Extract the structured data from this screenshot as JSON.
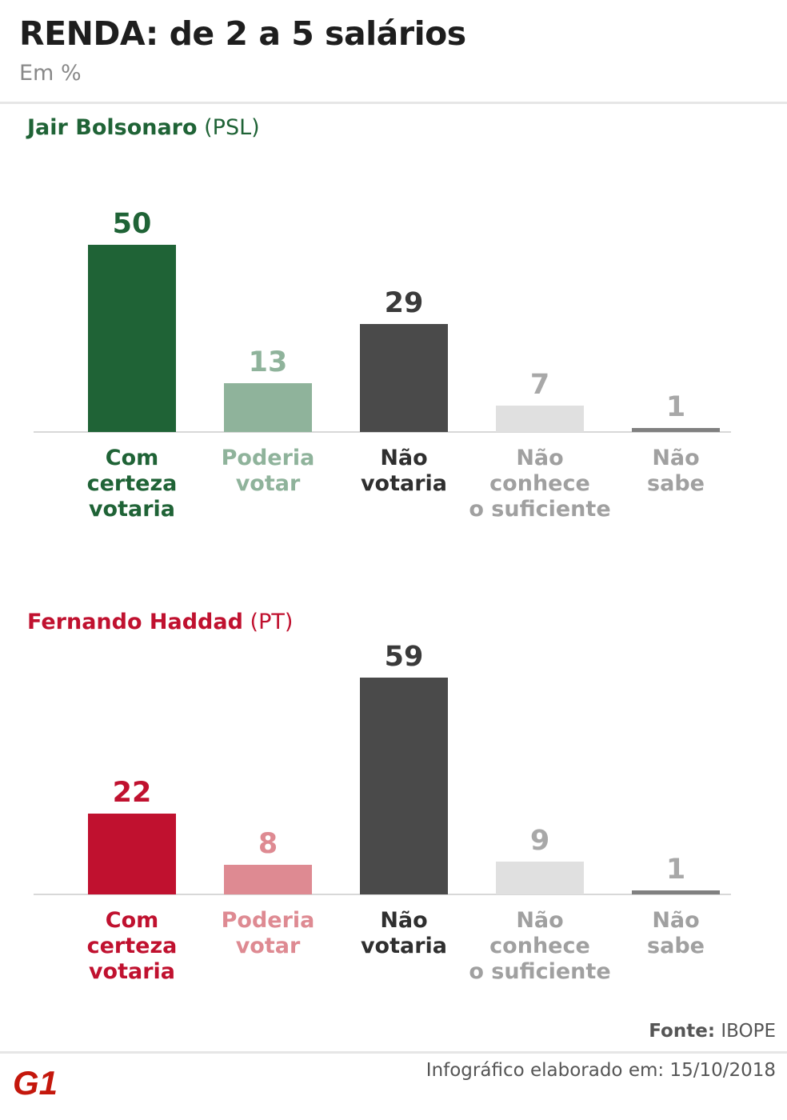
{
  "header": {
    "title": "RENDA: de 2 a 5 salários",
    "subtitle": "Em %"
  },
  "chart_data": [
    {
      "type": "bar",
      "candidate": "Jair Bolsonaro",
      "party": "(PSL)",
      "color": "#1f6336",
      "categories": [
        "Com certeza votaria",
        "Poderia votar",
        "Não votaria",
        "Não conhece o suficiente",
        "Não sabe"
      ],
      "category_lines": [
        [
          "Com",
          "certeza",
          "votaria"
        ],
        [
          "Poderia",
          "votar"
        ],
        [
          "Não",
          "votaria"
        ],
        [
          "Não",
          "conhece",
          "o suficiente"
        ],
        [
          "Não",
          "sabe"
        ]
      ],
      "values": [
        50,
        13,
        29,
        7,
        1
      ],
      "bar_colors": [
        "#1f6336",
        "#8fb39b",
        "#4a4a4a",
        "#e0e0e0",
        "#808080"
      ],
      "value_colors": [
        "#1f6336",
        "#8fb39b",
        "#3a3a3a",
        "#a8a8a8",
        "#a8a8a8"
      ],
      "label_colors": [
        "#1f6336",
        "#8fb39b",
        "#2f2f2f",
        "#a0a0a0",
        "#a0a0a0"
      ],
      "ylim": [
        0,
        59
      ]
    },
    {
      "type": "bar",
      "candidate": "Fernando Haddad",
      "party": "(PT)",
      "color": "#c0112f",
      "categories": [
        "Com certeza votaria",
        "Poderia votar",
        "Não votaria",
        "Não conhece o suficiente",
        "Não sabe"
      ],
      "category_lines": [
        [
          "Com",
          "certeza",
          "votaria"
        ],
        [
          "Poderia",
          "votar"
        ],
        [
          "Não",
          "votaria"
        ],
        [
          "Não",
          "conhece",
          "o suficiente"
        ],
        [
          "Não",
          "sabe"
        ]
      ],
      "values": [
        22,
        8,
        59,
        9,
        1
      ],
      "bar_colors": [
        "#c0112f",
        "#de8a92",
        "#4a4a4a",
        "#e0e0e0",
        "#808080"
      ],
      "value_colors": [
        "#c0112f",
        "#de8a92",
        "#3a3a3a",
        "#a8a8a8",
        "#a8a8a8"
      ],
      "label_colors": [
        "#c0112f",
        "#de8a92",
        "#2f2f2f",
        "#a0a0a0",
        "#a0a0a0"
      ],
      "ylim": [
        0,
        59
      ]
    }
  ],
  "footer": {
    "source_label": "Fonte:",
    "source_value": "IBOPE",
    "date_text": "Infográfico elaborado em: 15/10/2018",
    "logo_text": "G1",
    "logo_color": "#c4170c"
  }
}
